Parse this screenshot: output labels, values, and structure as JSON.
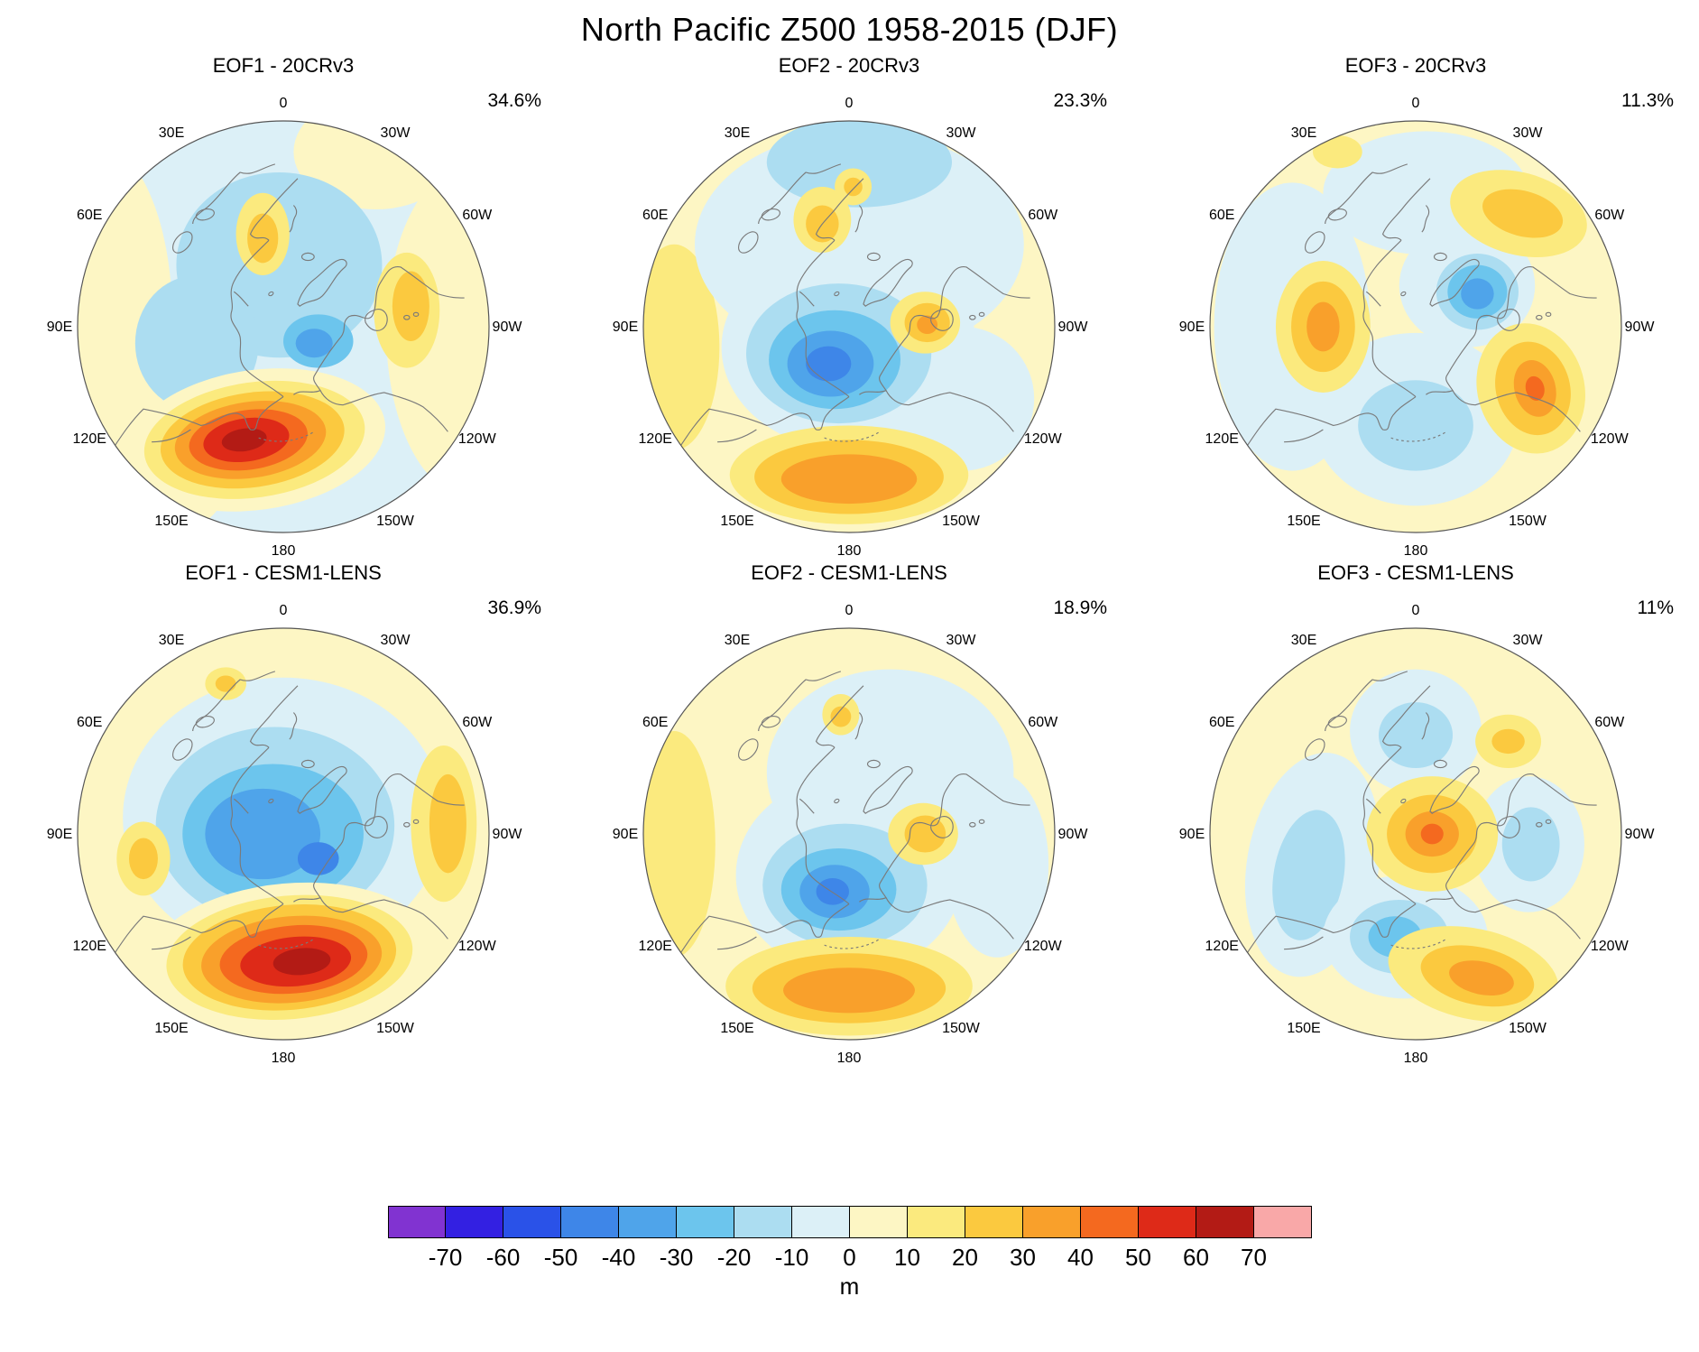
{
  "title": "North Pacific Z500 1958-2015 (DJF)",
  "chart_data": {
    "type": "heatmap",
    "subtype": "polar-stereographic filled-contour EOF maps, 2 rows x 3 columns",
    "title": "North Pacific Z500 1958-2015 (DJF)",
    "units": "m",
    "lon_labels": [
      [
        "0",
        0
      ],
      [
        "30E",
        30
      ],
      [
        "60E",
        60
      ],
      [
        "90E",
        90
      ],
      [
        "120E",
        120
      ],
      [
        "150E",
        150
      ],
      [
        "180",
        180
      ],
      [
        "150W",
        210
      ],
      [
        "120W",
        240
      ],
      [
        "90W",
        270
      ],
      [
        "60W",
        300
      ],
      [
        "30W",
        330
      ]
    ],
    "colorbar": {
      "label": "m",
      "tick_labels": [
        "-70",
        "-60",
        "-50",
        "-40",
        "-30",
        "-20",
        "-10",
        "0",
        "10",
        "20",
        "30",
        "40",
        "50",
        "60",
        "70"
      ],
      "colors": [
        "#8133D1",
        "#3320E2",
        "#2A52E8",
        "#3E86E8",
        "#4FA4EA",
        "#6CC5ED",
        "#ACDDF1",
        "#DCF0F7",
        "#FDF6C4",
        "#FBEA7E",
        "#FBC93F",
        "#F9A02B",
        "#F4691F",
        "#DE2A18",
        "#B31B15",
        "#F9A8A8"
      ]
    },
    "panels": [
      {
        "id": "eof1-20crv3",
        "mode": "EOF1",
        "dataset": "20CRv3",
        "title": "EOF1 - 20CRv3",
        "variance": "34.6%",
        "variance_pct": 34.6,
        "base": "#DCF0F7",
        "blobs": [
          [
            "#FDF6C4",
            -0.92,
            -0.05,
            0.38,
            0.85,
            0
          ],
          [
            "#FDF6C4",
            0.9,
            0.02,
            0.4,
            0.8,
            0
          ],
          [
            "#FDF6C4",
            0.45,
            -0.85,
            0.4,
            0.28,
            0
          ],
          [
            "#FDF6C4",
            -0.6,
            0.72,
            0.34,
            0.3,
            0
          ],
          [
            "#ACDDF1",
            -0.02,
            -0.3,
            0.5,
            0.45,
            0
          ],
          [
            "#ACDDF1",
            -0.42,
            0.08,
            0.3,
            0.33,
            0
          ],
          [
            "#FBEA7E",
            -0.1,
            -0.45,
            0.13,
            0.2,
            0
          ],
          [
            "#FBC93F",
            -0.1,
            -0.43,
            0.075,
            0.12,
            0
          ],
          [
            "#FBEA7E",
            0.6,
            -0.08,
            0.16,
            0.28,
            0
          ],
          [
            "#FBC93F",
            0.62,
            -0.1,
            0.09,
            0.17,
            0
          ],
          [
            "#6CC5ED",
            0.17,
            0.07,
            0.17,
            0.13,
            0
          ],
          [
            "#4FA4EA",
            0.15,
            0.08,
            0.09,
            0.07,
            0
          ],
          [
            "#FDF6C4",
            -0.13,
            0.55,
            0.63,
            0.34,
            -8
          ],
          [
            "#FBEA7E",
            -0.14,
            0.55,
            0.54,
            0.28,
            -8
          ],
          [
            "#FBC93F",
            -0.15,
            0.55,
            0.45,
            0.23,
            -8
          ],
          [
            "#F9A02B",
            -0.16,
            0.55,
            0.37,
            0.185,
            -8
          ],
          [
            "#F4691F",
            -0.17,
            0.55,
            0.29,
            0.145,
            -8
          ],
          [
            "#DE2A18",
            -0.18,
            0.55,
            0.21,
            0.105,
            -8
          ],
          [
            "#B31B15",
            -0.19,
            0.55,
            0.11,
            0.055,
            -8
          ]
        ]
      },
      {
        "id": "eof2-20crv3",
        "mode": "EOF2",
        "dataset": "20CRv3",
        "title": "EOF2 - 20CRv3",
        "variance": "23.3%",
        "variance_pct": 23.3,
        "base": "#FDF6C4",
        "blobs": [
          [
            "#FBEA7E",
            -0.85,
            0.1,
            0.22,
            0.5,
            0
          ],
          [
            "#DCF0F7",
            0.05,
            -0.4,
            0.8,
            0.55,
            0
          ],
          [
            "#DCF0F7",
            0.0,
            0.1,
            0.62,
            0.5,
            0
          ],
          [
            "#DCF0F7",
            0.55,
            0.35,
            0.35,
            0.35,
            0
          ],
          [
            "#ACDDF1",
            0.05,
            -0.8,
            0.45,
            0.22,
            0
          ],
          [
            "#ACDDF1",
            -0.05,
            0.13,
            0.45,
            0.34,
            0
          ],
          [
            "#6CC5ED",
            -0.07,
            0.16,
            0.32,
            0.24,
            0
          ],
          [
            "#4FA4EA",
            -0.09,
            0.18,
            0.21,
            0.16,
            0
          ],
          [
            "#3E86E8",
            -0.1,
            0.18,
            0.11,
            0.085,
            0
          ],
          [
            "#FBEA7E",
            -0.13,
            -0.52,
            0.14,
            0.16,
            0
          ],
          [
            "#FBC93F",
            -0.13,
            -0.5,
            0.08,
            0.09,
            0
          ],
          [
            "#FBEA7E",
            0.02,
            -0.68,
            0.09,
            0.09,
            0
          ],
          [
            "#FBC93F",
            0.02,
            -0.68,
            0.045,
            0.045,
            0
          ],
          [
            "#FBEA7E",
            0.37,
            -0.02,
            0.17,
            0.15,
            0
          ],
          [
            "#FBC93F",
            0.38,
            -0.02,
            0.11,
            0.095,
            0
          ],
          [
            "#F9A02B",
            0.38,
            -0.01,
            0.05,
            0.045,
            0
          ],
          [
            "#FBEA7E",
            0.0,
            0.72,
            0.58,
            0.24,
            0
          ],
          [
            "#FBC93F",
            0.0,
            0.73,
            0.46,
            0.18,
            0
          ],
          [
            "#F9A02B",
            0.0,
            0.74,
            0.33,
            0.12,
            0
          ]
        ]
      },
      {
        "id": "eof3-20crv3",
        "mode": "EOF3",
        "dataset": "20CRv3",
        "title": "EOF3 - 20CRv3",
        "variance": "11.3%",
        "variance_pct": 11.3,
        "base": "#FDF6C4",
        "blobs": [
          [
            "#DCF0F7",
            -0.6,
            0.0,
            0.38,
            0.7,
            0
          ],
          [
            "#DCF0F7",
            0.0,
            0.45,
            0.5,
            0.42,
            0
          ],
          [
            "#DCF0F7",
            0.05,
            -0.65,
            0.5,
            0.3,
            0
          ],
          [
            "#DCF0F7",
            0.25,
            -0.2,
            0.33,
            0.3,
            0
          ],
          [
            "#ACDDF1",
            0.0,
            0.48,
            0.28,
            0.22,
            0
          ],
          [
            "#ACDDF1",
            0.3,
            -0.17,
            0.2,
            0.185,
            0
          ],
          [
            "#6CC5ED",
            0.3,
            -0.17,
            0.145,
            0.13,
            0
          ],
          [
            "#4FA4EA",
            0.3,
            -0.16,
            0.08,
            0.075,
            0
          ],
          [
            "#FBEA7E",
            0.5,
            -0.55,
            0.34,
            0.2,
            15
          ],
          [
            "#FBC93F",
            0.52,
            -0.55,
            0.2,
            0.11,
            15
          ],
          [
            "#FBEA7E",
            -0.38,
            -0.85,
            0.12,
            0.08,
            0
          ],
          [
            "#FBEA7E",
            -0.45,
            0.0,
            0.23,
            0.32,
            0
          ],
          [
            "#FBC93F",
            -0.45,
            0.0,
            0.155,
            0.22,
            0
          ],
          [
            "#F9A02B",
            -0.45,
            0.0,
            0.08,
            0.12,
            0
          ],
          [
            "#FBEA7E",
            0.56,
            0.3,
            0.26,
            0.32,
            -15
          ],
          [
            "#FBC93F",
            0.57,
            0.3,
            0.18,
            0.23,
            -15
          ],
          [
            "#F9A02B",
            0.58,
            0.3,
            0.1,
            0.14,
            -15
          ],
          [
            "#F4691F",
            0.58,
            0.3,
            0.045,
            0.06,
            -15
          ]
        ]
      },
      {
        "id": "eof1-cesm1-lens",
        "mode": "EOF1",
        "dataset": "CESM1-LENS",
        "title": "EOF1 - CESM1-LENS",
        "variance": "36.9%",
        "variance_pct": 36.9,
        "base": "#FDF6C4",
        "blobs": [
          [
            "#DCF0F7",
            0.0,
            -0.08,
            0.78,
            0.68,
            0
          ],
          [
            "#ACDDF1",
            -0.04,
            -0.04,
            0.58,
            0.48,
            0
          ],
          [
            "#6CC5ED",
            -0.05,
            0.0,
            0.44,
            0.34,
            0
          ],
          [
            "#4FA4EA",
            -0.1,
            0.0,
            0.28,
            0.22,
            0
          ],
          [
            "#3E86E8",
            0.17,
            0.12,
            0.1,
            0.08,
            0
          ],
          [
            "#FBEA7E",
            -0.68,
            0.12,
            0.13,
            0.18,
            0
          ],
          [
            "#FBC93F",
            -0.68,
            0.12,
            0.07,
            0.1,
            0
          ],
          [
            "#FBEA7E",
            -0.28,
            -0.73,
            0.1,
            0.08,
            0
          ],
          [
            "#FBC93F",
            -0.28,
            -0.73,
            0.05,
            0.04,
            0
          ],
          [
            "#FBEA7E",
            0.78,
            -0.05,
            0.16,
            0.38,
            0
          ],
          [
            "#FBC93F",
            0.8,
            -0.05,
            0.09,
            0.24,
            0
          ],
          [
            "#FDF6C4",
            0.03,
            0.6,
            0.7,
            0.36,
            -5
          ],
          [
            "#FBEA7E",
            0.03,
            0.6,
            0.6,
            0.3,
            -5
          ],
          [
            "#FBC93F",
            0.03,
            0.6,
            0.52,
            0.255,
            -5
          ],
          [
            "#F9A02B",
            0.04,
            0.61,
            0.44,
            0.21,
            -5
          ],
          [
            "#F4691F",
            0.05,
            0.61,
            0.36,
            0.165,
            -5
          ],
          [
            "#DE2A18",
            0.06,
            0.62,
            0.27,
            0.12,
            -5
          ],
          [
            "#B31B15",
            0.09,
            0.62,
            0.14,
            0.065,
            -5
          ]
        ]
      },
      {
        "id": "eof2-cesm1-lens",
        "mode": "EOF2",
        "dataset": "CESM1-LENS",
        "title": "EOF2 - CESM1-LENS",
        "variance": "18.9%",
        "variance_pct": 18.9,
        "base": "#FDF6C4",
        "blobs": [
          [
            "#FBEA7E",
            -0.85,
            0.05,
            0.2,
            0.55,
            0
          ],
          [
            "#DCF0F7",
            0.2,
            -0.3,
            0.6,
            0.5,
            0
          ],
          [
            "#DCF0F7",
            0.0,
            0.2,
            0.55,
            0.48,
            0
          ],
          [
            "#DCF0F7",
            0.72,
            0.15,
            0.25,
            0.45,
            0
          ],
          [
            "#ACDDF1",
            -0.02,
            0.25,
            0.4,
            0.3,
            0
          ],
          [
            "#6CC5ED",
            -0.05,
            0.27,
            0.28,
            0.2,
            0
          ],
          [
            "#4FA4EA",
            -0.07,
            0.28,
            0.17,
            0.13,
            0
          ],
          [
            "#3E86E8",
            -0.08,
            0.28,
            0.08,
            0.065,
            0
          ],
          [
            "#FBEA7E",
            -0.04,
            -0.58,
            0.09,
            0.1,
            0
          ],
          [
            "#FBC93F",
            -0.04,
            -0.57,
            0.05,
            0.05,
            0
          ],
          [
            "#FBEA7E",
            0.36,
            0.0,
            0.17,
            0.15,
            0
          ],
          [
            "#FBC93F",
            0.37,
            0.0,
            0.1,
            0.09,
            0
          ],
          [
            "#FBEA7E",
            0.0,
            0.74,
            0.6,
            0.24,
            0
          ],
          [
            "#FBC93F",
            0.0,
            0.75,
            0.47,
            0.17,
            0
          ],
          [
            "#F9A02B",
            0.0,
            0.76,
            0.32,
            0.11,
            0
          ]
        ]
      },
      {
        "id": "eof3-cesm1-lens",
        "mode": "EOF3",
        "dataset": "CESM1-LENS",
        "title": "EOF3 - CESM1-LENS",
        "variance": "11%",
        "variance_pct": 11,
        "base": "#FDF6C4",
        "blobs": [
          [
            "#DCF0F7",
            0.0,
            -0.5,
            0.32,
            0.3,
            0
          ],
          [
            "#ACDDF1",
            0.0,
            -0.48,
            0.18,
            0.16,
            0
          ],
          [
            "#DCF0F7",
            0.55,
            0.05,
            0.27,
            0.33,
            0
          ],
          [
            "#ACDDF1",
            0.56,
            0.05,
            0.14,
            0.18,
            0
          ],
          [
            "#DCF0F7",
            -0.5,
            0.15,
            0.32,
            0.55,
            10
          ],
          [
            "#ACDDF1",
            -0.52,
            0.2,
            0.17,
            0.32,
            10
          ],
          [
            "#DCF0F7",
            -0.05,
            0.5,
            0.4,
            0.3,
            0
          ],
          [
            "#ACDDF1",
            -0.08,
            0.5,
            0.24,
            0.18,
            0
          ],
          [
            "#6CC5ED",
            -0.1,
            0.5,
            0.13,
            0.1,
            0
          ],
          [
            "#FBEA7E",
            0.08,
            0.0,
            0.32,
            0.28,
            0
          ],
          [
            "#FBC93F",
            0.08,
            0.0,
            0.22,
            0.19,
            0
          ],
          [
            "#F9A02B",
            0.08,
            0.0,
            0.13,
            0.11,
            0
          ],
          [
            "#F4691F",
            0.08,
            0.0,
            0.055,
            0.05,
            0
          ],
          [
            "#FBEA7E",
            0.45,
            -0.45,
            0.16,
            0.13,
            0
          ],
          [
            "#FBC93F",
            0.45,
            -0.45,
            0.08,
            0.06,
            0
          ],
          [
            "#FBEA7E",
            0.28,
            0.68,
            0.42,
            0.22,
            12
          ],
          [
            "#FBC93F",
            0.3,
            0.69,
            0.28,
            0.14,
            12
          ],
          [
            "#F9A02B",
            0.32,
            0.7,
            0.16,
            0.08,
            12
          ]
        ]
      }
    ]
  }
}
